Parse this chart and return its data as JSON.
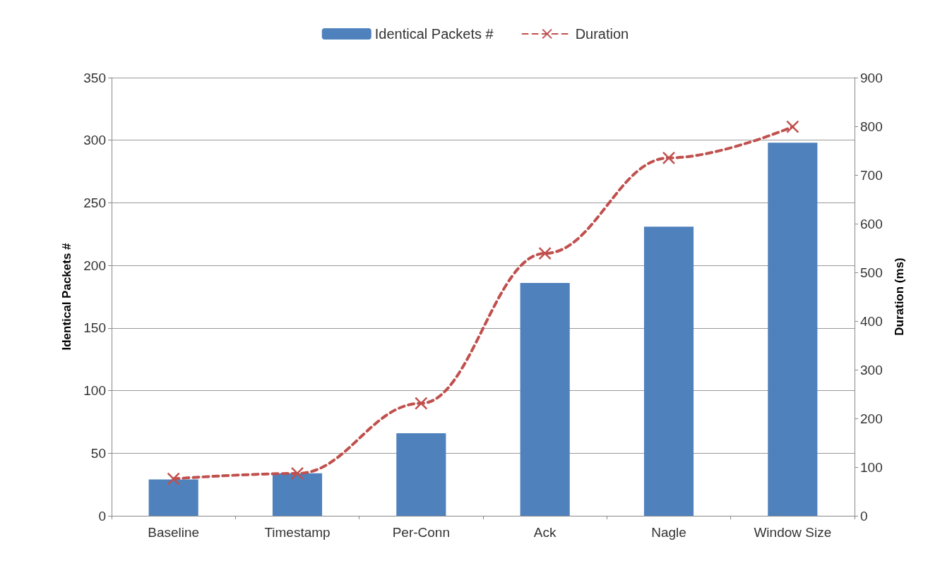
{
  "chart_data": {
    "type": "bar",
    "categories": [
      "Baseline",
      "Timestamp",
      "Per-Conn",
      "Ack",
      "Nagle",
      "Window Size"
    ],
    "ylabel": "Identical Packets #",
    "y2label": "Duration (ms)",
    "series": [
      {
        "name": "Identical Packets #",
        "color": "#4f81bd",
        "values": [
          29,
          34,
          66,
          186,
          231,
          298
        ]
      },
      {
        "name": "Duration",
        "type": "line",
        "axis": "y2",
        "color": "#c0504d",
        "marker": "cross",
        "line_style": "dashed",
        "values": [
          76,
          87,
          231,
          539,
          735,
          799
        ]
      }
    ],
    "ylim": [
      0,
      350
    ],
    "yticks": [
      0,
      50,
      100,
      150,
      200,
      250,
      300,
      350
    ],
    "y2lim": [
      0,
      900
    ],
    "y2ticks": [
      0,
      100,
      200,
      300,
      400,
      500,
      600,
      700,
      800,
      900
    ],
    "grid": "y",
    "legend": "top"
  }
}
